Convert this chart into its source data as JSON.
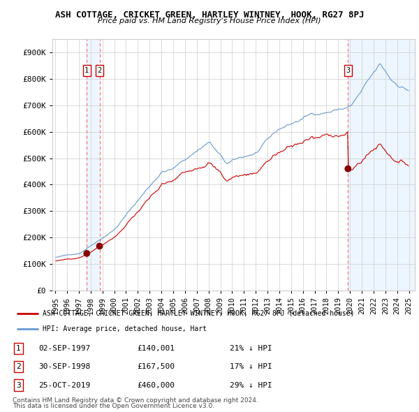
{
  "title": "ASH COTTAGE, CRICKET GREEN, HARTLEY WINTNEY, HOOK, RG27 8PJ",
  "subtitle": "Price paid vs. HM Land Registry's House Price Index (HPI)",
  "legend_line1": "ASH COTTAGE, CRICKET GREEN, HARTLEY WINTNEY, HOOK, RG27 8PJ (detached house)",
  "legend_line2": "HPI: Average price, detached house, Hart",
  "footnote1": "Contains HM Land Registry data © Crown copyright and database right 2024.",
  "footnote2": "This data is licensed under the Open Government Licence v3.0.",
  "red_line_color": "#cc0000",
  "blue_line_color": "#6699cc",
  "blue_fill_color": "#ddeeff",
  "dashed_line_color": "#ff6666",
  "marker_color": "#880000",
  "background_color": "#ffffff",
  "grid_color": "#cccccc",
  "ylim": [
    0,
    950000
  ],
  "xlim_start": 1994.75,
  "xlim_end": 2025.5,
  "yticks": [
    0,
    100000,
    200000,
    300000,
    400000,
    500000,
    600000,
    700000,
    800000,
    900000
  ],
  "ytick_labels": [
    "£0",
    "£100K",
    "£200K",
    "£300K",
    "£400K",
    "£500K",
    "£600K",
    "£700K",
    "£800K",
    "£900K"
  ],
  "sale1_x": 1997.67,
  "sale1_price": 140001,
  "sale2_x": 1998.75,
  "sale2_price": 167500,
  "sale3_x": 2019.83,
  "sale3_price": 460000
}
